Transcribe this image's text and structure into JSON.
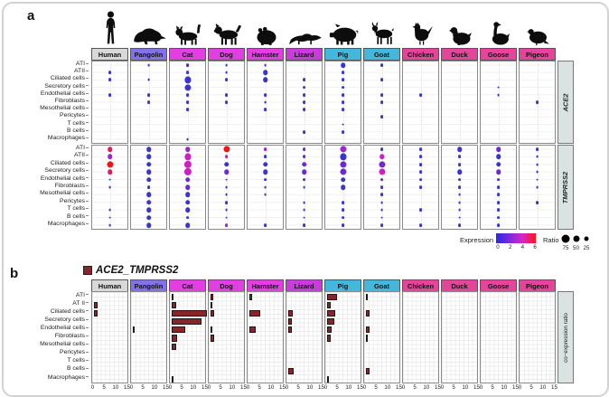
{
  "figure": {
    "panel_a_label": "a",
    "panel_b_label": "b"
  },
  "species": [
    {
      "name": "Human",
      "color": "#d8d8d8",
      "icon": "human"
    },
    {
      "name": "Pangolin",
      "color": "#8272e6",
      "icon": "pangolin"
    },
    {
      "name": "Cat",
      "color": "#e23fe2",
      "icon": "cat"
    },
    {
      "name": "Dog",
      "color": "#e23fe2",
      "icon": "dog"
    },
    {
      "name": "Hamster",
      "color": "#e23fe2",
      "icon": "hamster"
    },
    {
      "name": "Lizard",
      "color": "#cb3ade",
      "icon": "lizard"
    },
    {
      "name": "Pig",
      "color": "#44b8db",
      "icon": "pig"
    },
    {
      "name": "Goat",
      "color": "#44b8db",
      "icon": "goat"
    },
    {
      "name": "Chicken",
      "color": "#e6449b",
      "icon": "chicken"
    },
    {
      "name": "Duck",
      "color": "#e6449b",
      "icon": "duck"
    },
    {
      "name": "Goose",
      "color": "#e6449b",
      "icon": "goose"
    },
    {
      "name": "Pigeon",
      "color": "#e6449b",
      "icon": "pigeon"
    }
  ],
  "panel_a": {
    "cell_types": [
      "ATI",
      "ATII",
      "Ciliated cells",
      "Secretory cells",
      "Endothelial cells",
      "Fibroblasts",
      "Mesothelial cells",
      "Pericytes",
      "T cells",
      "B cells",
      "Macrophages"
    ],
    "genes": [
      "ACE2",
      "TMPRSS2"
    ],
    "legend": {
      "expression_label": "Expression",
      "expression_ticks": [
        "0",
        "2",
        "4",
        "6"
      ],
      "gradient_colors": [
        "#2a2ae0",
        "#7c2bdc",
        "#d628c4",
        "#ff1414"
      ],
      "ratio_label": "Ratio",
      "ratio_sizes": [
        "75",
        "50",
        "25"
      ]
    }
  },
  "panel_b": {
    "title": "ACE2_TMPRSS2",
    "title_square_color": "#8b2428",
    "bar_color": "#8b2428",
    "cell_types": [
      "ATI",
      "AT II",
      "Ciliated cells",
      "Secretory cells",
      "Endothelial cells",
      "Fibroblasts",
      "Mesothelial cells",
      "Pericytes",
      "T cells",
      "B cells",
      "Macrophages"
    ],
    "x_ticks": [
      "0",
      "5",
      "10",
      "15"
    ],
    "right_label": "co−expression ratio"
  },
  "chart_data": [
    {
      "type": "scatter",
      "subtype": "dotplot",
      "gene": "ACE2",
      "rows": [
        "ATI",
        "ATII",
        "Ciliated cells",
        "Secretory cells",
        "Endothelial cells",
        "Fibroblasts",
        "Mesothelial cells",
        "Pericytes",
        "T cells",
        "B cells",
        "Macrophages"
      ],
      "columns": [
        "Human",
        "Pangolin",
        "Cat",
        "Dog",
        "Hamster",
        "Lizard",
        "Pig",
        "Goat",
        "Chicken",
        "Duck",
        "Goose",
        "Pigeon"
      ],
      "expression_ticks": [
        0,
        2,
        4,
        6
      ],
      "ratio_legend": [
        75,
        50,
        25
      ],
      "dot_colors": {
        "b": "#3a35cf",
        "p": "#6b2ad4",
        "v": "#9e22d6",
        "m": "#cf1fc4",
        "c": "#e51767",
        "r": "#ee1515"
      },
      "dots_format": "[rowIndex, ratioPercent, colorKey?]",
      "dots": {
        "Human": [
          [
            1,
            12
          ],
          [
            2,
            12
          ],
          [
            4,
            12
          ]
        ],
        "Pangolin": [
          [
            0,
            5
          ],
          [
            2,
            5
          ],
          [
            4,
            12
          ],
          [
            5,
            12
          ]
        ],
        "Cat": [
          [
            0,
            12
          ],
          [
            1,
            12
          ],
          [
            2,
            55
          ],
          [
            3,
            55
          ],
          [
            4,
            12
          ],
          [
            5,
            12
          ],
          [
            6,
            12
          ],
          [
            10,
            5
          ]
        ],
        "Dog": [
          [
            0,
            5
          ],
          [
            1,
            5
          ],
          [
            2,
            12
          ],
          [
            4,
            12
          ],
          [
            5,
            12
          ]
        ],
        "Hamster": [
          [
            0,
            5
          ],
          [
            1,
            30
          ],
          [
            2,
            30
          ],
          [
            4,
            12
          ],
          [
            5,
            5
          ],
          [
            6,
            12
          ]
        ],
        "Lizard": [
          [
            2,
            12
          ],
          [
            3,
            12
          ],
          [
            4,
            12
          ],
          [
            5,
            12
          ],
          [
            6,
            12
          ],
          [
            9,
            12
          ]
        ],
        "Pig": [
          [
            0,
            30
          ],
          [
            1,
            12
          ],
          [
            2,
            12
          ],
          [
            3,
            12
          ],
          [
            4,
            12
          ],
          [
            5,
            12
          ],
          [
            6,
            12
          ],
          [
            8,
            5
          ],
          [
            9,
            12
          ]
        ],
        "Goat": [
          [
            0,
            12
          ],
          [
            2,
            12
          ],
          [
            4,
            12
          ],
          [
            5,
            12
          ],
          [
            7,
            12
          ]
        ],
        "Chicken": [
          [
            4,
            12
          ]
        ],
        "Duck": [],
        "Goose": [
          [
            3,
            5
          ],
          [
            4,
            5
          ]
        ],
        "Pigeon": [
          [
            5,
            12
          ]
        ]
      }
    },
    {
      "type": "scatter",
      "subtype": "dotplot",
      "gene": "TMPRSS2",
      "rows": [
        "ATI",
        "ATII",
        "Ciliated cells",
        "Secretory cells",
        "Endothelial cells",
        "Fibroblasts",
        "Mesothelial cells",
        "Pericytes",
        "T cells",
        "B cells",
        "Macrophages"
      ],
      "columns": [
        "Human",
        "Pangolin",
        "Cat",
        "Dog",
        "Hamster",
        "Lizard",
        "Pig",
        "Goat",
        "Chicken",
        "Duck",
        "Goose",
        "Pigeon"
      ],
      "dots": {
        "Human": [
          [
            0,
            30,
            "c"
          ],
          [
            1,
            30,
            "v"
          ],
          [
            2,
            55,
            "r"
          ],
          [
            3,
            30,
            "c"
          ],
          [
            4,
            5,
            "b"
          ],
          [
            5,
            5,
            "b"
          ],
          [
            8,
            5,
            "b"
          ],
          [
            9,
            5,
            "b"
          ],
          [
            10,
            5,
            "b"
          ]
        ],
        "Pangolin": [
          [
            0,
            30,
            "b"
          ],
          [
            1,
            30,
            "b"
          ],
          [
            2,
            30,
            "b"
          ],
          [
            3,
            30,
            "b"
          ],
          [
            4,
            30,
            "b"
          ],
          [
            5,
            12,
            "b"
          ],
          [
            6,
            30,
            "b"
          ],
          [
            7,
            30,
            "b"
          ],
          [
            8,
            30,
            "b"
          ],
          [
            9,
            30,
            "b"
          ],
          [
            10,
            30,
            "b"
          ]
        ],
        "Cat": [
          [
            0,
            30,
            "v"
          ],
          [
            1,
            55,
            "m"
          ],
          [
            2,
            75,
            "m"
          ],
          [
            3,
            75,
            "m"
          ],
          [
            4,
            30,
            "p"
          ],
          [
            5,
            30,
            "p"
          ],
          [
            6,
            30,
            "b"
          ],
          [
            7,
            30,
            "b"
          ],
          [
            8,
            30,
            "b"
          ],
          [
            9,
            12,
            "b"
          ],
          [
            10,
            30,
            "b"
          ]
        ],
        "Dog": [
          [
            0,
            55,
            "r"
          ],
          [
            1,
            12,
            "m"
          ],
          [
            2,
            30,
            "b"
          ],
          [
            3,
            30,
            "p"
          ],
          [
            4,
            5,
            "p"
          ],
          [
            5,
            5,
            "b"
          ],
          [
            6,
            5,
            "b"
          ],
          [
            7,
            12,
            "b"
          ],
          [
            8,
            5,
            "b"
          ],
          [
            9,
            5,
            "b"
          ],
          [
            10,
            12,
            "v"
          ]
        ],
        "Hamster": [
          [
            0,
            12,
            "v"
          ],
          [
            1,
            12,
            "b"
          ],
          [
            2,
            30,
            "b"
          ],
          [
            3,
            30,
            "b"
          ],
          [
            4,
            12,
            "b"
          ],
          [
            5,
            5,
            "b"
          ],
          [
            6,
            5,
            "b"
          ],
          [
            10,
            12,
            "b"
          ]
        ],
        "Lizard": [
          [
            0,
            12,
            "p"
          ],
          [
            1,
            12,
            "p"
          ],
          [
            2,
            30,
            "p"
          ],
          [
            3,
            30,
            "p"
          ],
          [
            4,
            12,
            "b"
          ],
          [
            5,
            5,
            "b"
          ],
          [
            7,
            5,
            "b"
          ],
          [
            8,
            5,
            "b"
          ],
          [
            9,
            5,
            "b"
          ],
          [
            10,
            12,
            "b"
          ]
        ],
        "Pig": [
          [
            0,
            55,
            "v"
          ],
          [
            1,
            55,
            "b"
          ],
          [
            2,
            55,
            "p"
          ],
          [
            3,
            55,
            "p"
          ],
          [
            4,
            30,
            "b"
          ],
          [
            5,
            30,
            "b"
          ],
          [
            7,
            12,
            "b"
          ],
          [
            8,
            12,
            "b"
          ],
          [
            9,
            12,
            "b"
          ],
          [
            10,
            12,
            "b"
          ]
        ],
        "Goat": [
          [
            0,
            12,
            "b"
          ],
          [
            1,
            30,
            "m"
          ],
          [
            2,
            55,
            "p"
          ],
          [
            3,
            55,
            "m"
          ],
          [
            4,
            12,
            "b"
          ],
          [
            5,
            12,
            "b"
          ],
          [
            6,
            12,
            "b"
          ],
          [
            7,
            5,
            "b"
          ],
          [
            8,
            5,
            "b"
          ],
          [
            9,
            5,
            "b"
          ],
          [
            10,
            12,
            "b"
          ]
        ],
        "Chicken": [
          [
            0,
            12,
            "b"
          ],
          [
            1,
            12,
            "b"
          ],
          [
            2,
            12,
            "b"
          ],
          [
            3,
            12,
            "b"
          ],
          [
            4,
            12,
            "b"
          ],
          [
            5,
            12,
            "b"
          ],
          [
            8,
            12,
            "b"
          ],
          [
            10,
            12,
            "b"
          ]
        ],
        "Duck": [
          [
            0,
            30,
            "b"
          ],
          [
            1,
            12,
            "b"
          ],
          [
            2,
            12,
            "b"
          ],
          [
            3,
            30,
            "b"
          ],
          [
            4,
            12,
            "b"
          ],
          [
            5,
            12,
            "b"
          ],
          [
            6,
            5,
            "b"
          ],
          [
            7,
            5,
            "b"
          ],
          [
            8,
            5,
            "b"
          ],
          [
            9,
            5,
            "b"
          ],
          [
            10,
            12,
            "b"
          ]
        ],
        "Goose": [
          [
            0,
            30,
            "p"
          ],
          [
            1,
            30,
            "b"
          ],
          [
            2,
            30,
            "b"
          ],
          [
            3,
            30,
            "p"
          ],
          [
            4,
            12,
            "b"
          ],
          [
            5,
            12,
            "b"
          ],
          [
            6,
            12,
            "b"
          ],
          [
            7,
            12,
            "b"
          ],
          [
            8,
            12,
            "b"
          ],
          [
            9,
            12,
            "b"
          ],
          [
            10,
            12,
            "b"
          ]
        ],
        "Pigeon": [
          [
            0,
            12,
            "b"
          ],
          [
            1,
            5,
            "b"
          ],
          [
            2,
            5,
            "b"
          ],
          [
            3,
            5,
            "b"
          ],
          [
            4,
            5,
            "b"
          ],
          [
            5,
            5,
            "b"
          ],
          [
            7,
            12,
            "b"
          ]
        ]
      }
    },
    {
      "type": "bar",
      "title": "ACE2_TMPRSS2",
      "orientation": "horizontal",
      "x_range": [
        0,
        15
      ],
      "x_ticks": [
        0,
        5,
        10,
        15
      ],
      "rows": [
        "ATI",
        "AT II",
        "Ciliated cells",
        "Secretory cells",
        "Endothelial cells",
        "Fibroblasts",
        "Mesothelial cells",
        "Pericytes",
        "T cells",
        "B cells",
        "Macrophages"
      ],
      "columns": [
        "Human",
        "Pangolin",
        "Cat",
        "Dog",
        "Hamster",
        "Lizard",
        "Pig",
        "Goat",
        "Chicken",
        "Duck",
        "Goose",
        "Pigeon"
      ],
      "bars_format": "[rowIndex, value]",
      "bars": {
        "Human": [
          [
            1,
            0.8
          ],
          [
            2,
            0.8
          ]
        ],
        "Pangolin": [
          [
            4,
            0.3
          ]
        ],
        "Cat": [
          [
            0,
            0.35
          ],
          [
            1,
            1.2
          ],
          [
            2,
            14.8
          ],
          [
            3,
            12.5
          ],
          [
            4,
            5.3
          ],
          [
            5,
            1.8
          ],
          [
            6,
            1.2
          ],
          [
            10,
            0.35
          ]
        ],
        "Dog": [
          [
            0,
            0.4
          ],
          [
            1,
            0.3
          ],
          [
            2,
            0.9
          ],
          [
            4,
            0.3
          ],
          [
            5,
            0.8
          ]
        ],
        "Hamster": [
          [
            0,
            0.5
          ],
          [
            2,
            4.2
          ],
          [
            4,
            2.2
          ]
        ],
        "Lizard": [
          [
            2,
            1.3
          ],
          [
            3,
            1.0
          ],
          [
            4,
            1.0
          ],
          [
            9,
            1.6
          ]
        ],
        "Pig": [
          [
            0,
            3.9
          ],
          [
            1,
            0.9
          ],
          [
            2,
            2.8
          ],
          [
            3,
            2.6
          ],
          [
            4,
            1.3
          ],
          [
            5,
            1.0
          ],
          [
            10,
            0.2
          ]
        ],
        "Goat": [
          [
            0,
            0.2
          ],
          [
            2,
            1.1
          ],
          [
            4,
            1.1
          ],
          [
            5,
            0.3
          ],
          [
            9,
            1.1
          ]
        ],
        "Chicken": [],
        "Duck": [],
        "Goose": [],
        "Pigeon": []
      }
    }
  ]
}
